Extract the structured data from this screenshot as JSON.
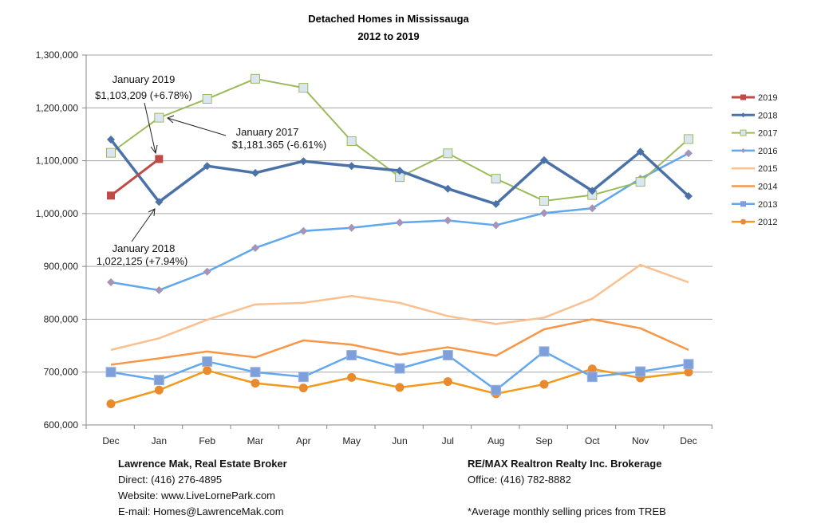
{
  "chart_data": {
    "type": "line",
    "title": "Detached Homes in Mississauga",
    "subtitle": "2012 to 2019",
    "xlabel": "",
    "ylabel": "",
    "ylim": [
      600000,
      1300000
    ],
    "yticks": [
      600000,
      700000,
      800000,
      900000,
      1000000,
      1100000,
      1200000,
      1300000
    ],
    "ytick_labels": [
      "600,000",
      "700,000",
      "800,000",
      "900,000",
      "1,000,000",
      "1,100,000",
      "1,200,000",
      "1,300,000"
    ],
    "categories": [
      "Dec",
      "Jan",
      "Feb",
      "Mar",
      "Apr",
      "May",
      "Jun",
      "Jul",
      "Aug",
      "Sep",
      "Oct",
      "Nov",
      "Dec"
    ],
    "grid": "horizontal",
    "legend_position": "right",
    "series": [
      {
        "name": "2019",
        "color": "#be4b48",
        "marker": "square",
        "width": 3,
        "values": [
          1034000,
          1103209,
          null,
          null,
          null,
          null,
          null,
          null,
          null,
          null,
          null,
          null,
          null
        ]
      },
      {
        "name": "2018",
        "color": "#4a72a8",
        "marker": "diamond",
        "width": 3.5,
        "values": [
          1140000,
          1022125,
          1090000,
          1077000,
          1099000,
          1090000,
          1081000,
          1047000,
          1018000,
          1101000,
          1043000,
          1117000,
          1033000
        ]
      },
      {
        "name": "2017",
        "color": "#9bbb59",
        "marker": "square-light",
        "width": 2,
        "values": [
          1115000,
          1181365,
          1217000,
          1255000,
          1238000,
          1137000,
          1069000,
          1114000,
          1066000,
          1024000,
          1035000,
          1060000,
          1141000
        ]
      },
      {
        "name": "2016",
        "color": "#5fa7ef",
        "marker": "diamond-purple",
        "width": 2.5,
        "values": [
          870000,
          855000,
          890000,
          935000,
          967000,
          973000,
          983000,
          987000,
          978000,
          1001000,
          1010000,
          1066000,
          1114000
        ]
      },
      {
        "name": "2015",
        "color": "#fac090",
        "marker": "none",
        "width": 2.5,
        "values": [
          742000,
          764000,
          799000,
          828000,
          831000,
          844000,
          831000,
          806000,
          791000,
          803000,
          839000,
          903000,
          870000
        ]
      },
      {
        "name": "2014",
        "color": "#f79646",
        "marker": "none",
        "width": 2.5,
        "values": [
          714000,
          726000,
          739000,
          728000,
          760000,
          752000,
          733000,
          747000,
          731000,
          781000,
          800000,
          783000,
          742000
        ]
      },
      {
        "name": "2013",
        "color": "#63a8ef",
        "marker": "square-blue",
        "width": 2.5,
        "values": [
          700000,
          685000,
          720000,
          700000,
          691000,
          732000,
          707000,
          732000,
          666000,
          739000,
          691000,
          701000,
          715000
        ]
      },
      {
        "name": "2012",
        "color": "#f39a1c",
        "marker": "circle",
        "width": 2.5,
        "values": [
          640000,
          666000,
          703000,
          679000,
          670000,
          690000,
          671000,
          682000,
          659000,
          677000,
          706000,
          689000,
          700000
        ]
      }
    ],
    "annotations": [
      {
        "lines": [
          "January 2019",
          "$1,103,209 (+6.78%)"
        ],
        "series": "2019",
        "category_index": 1
      },
      {
        "lines": [
          "January 2017",
          "$1,181.365 (-6.61%)"
        ],
        "series": "2017",
        "category_index": 1
      },
      {
        "lines": [
          "January 2018",
          "1,022,125 (+7.94%)"
        ],
        "series": "2018",
        "category_index": 1
      }
    ]
  },
  "footer": {
    "left": {
      "name": "Lawrence Mak, Real Estate Broker",
      "direct": "Direct:  (416) 276-4895",
      "website": "Website:  www.LiveLornePark.com",
      "email": "E-mail:  Homes@LawrenceMak.com"
    },
    "right": {
      "brokerage": "RE/MAX Realtron Realty Inc. Brokerage",
      "office": "Office: (416) 782-8882",
      "note": "*Average monthly selling prices from TREB"
    }
  }
}
